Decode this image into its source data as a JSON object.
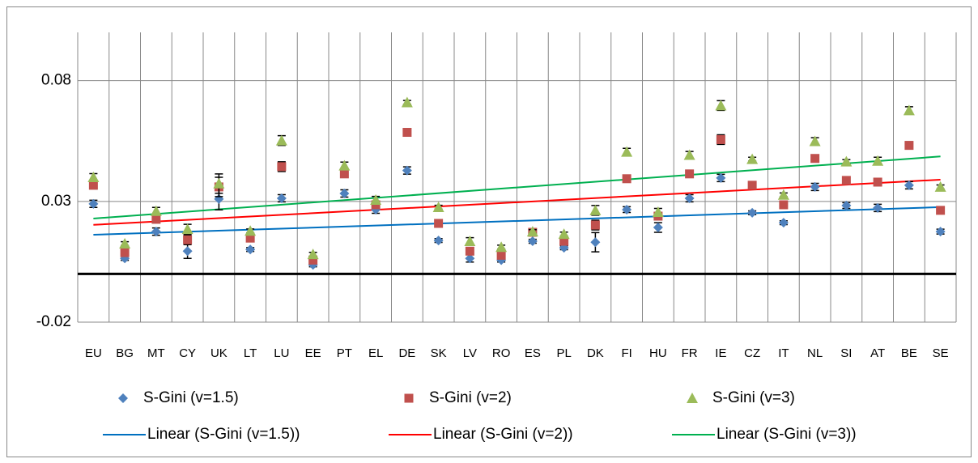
{
  "chart_data": {
    "type": "scatter",
    "categories": [
      "EU",
      "BG",
      "MT",
      "CY",
      "UK",
      "LT",
      "LU",
      "EE",
      "PT",
      "EL",
      "DE",
      "SK",
      "LV",
      "RO",
      "ES",
      "PL",
      "DK",
      "FI",
      "HU",
      "FR",
      "IE",
      "CZ",
      "IT",
      "NL",
      "SI",
      "AT",
      "BE",
      "SE"
    ],
    "ylim": [
      -0.02,
      0.1
    ],
    "yticks": [
      -0.02,
      0.03,
      0.08
    ],
    "grid": true,
    "series": [
      {
        "name": "S-Gini (v=1.5)",
        "marker": "diamond",
        "color": "#4f81bd",
        "trend_name": "Linear (S-Gini (v=1.5))",
        "trend_color": "#0070c0",
        "values": [
          0.029,
          0.0064,
          0.0175,
          0.0094,
          0.031,
          0.0101,
          0.0313,
          0.0037,
          0.0333,
          0.0266,
          0.0428,
          0.0138,
          0.0064,
          0.0057,
          0.0135,
          0.0108,
          0.0131,
          0.0266,
          0.0192,
          0.0313,
          0.0397,
          0.0253,
          0.0212,
          0.036,
          0.0283,
          0.0273,
          0.0367,
          0.0175
        ],
        "errors": [
          0.0015,
          0.0008,
          0.0015,
          0.003,
          0.0045,
          0.0008,
          0.0015,
          0.0008,
          0.0015,
          0.0015,
          0.0015,
          0.0008,
          0.0015,
          0.0008,
          0.0008,
          0.0008,
          0.004,
          0.0012,
          0.002,
          0.0015,
          0.0015,
          0.0008,
          0.0008,
          0.0015,
          0.0012,
          0.0015,
          0.0015,
          0.001
        ]
      },
      {
        "name": "S-Gini (v=2)",
        "marker": "square",
        "color": "#c0504d",
        "trend_name": "Linear (S-Gini (v=2))",
        "trend_color": "#ff0000",
        "values": [
          0.0367,
          0.0088,
          0.0226,
          0.0141,
          0.036,
          0.0148,
          0.0444,
          0.0057,
          0.0414,
          0.0286,
          0.0586,
          0.0209,
          0.0094,
          0.0077,
          0.0172,
          0.0135,
          0.0202,
          0.0394,
          0.0239,
          0.0414,
          0.0556,
          0.0367,
          0.0286,
          0.0478,
          0.0387,
          0.038,
          0.0532,
          0.0263
        ],
        "errors": [
          0.0015,
          0.0008,
          0.0015,
          0.002,
          0.004,
          0.0008,
          0.002,
          0.0008,
          0.0015,
          0.0015,
          0.0008,
          0.0008,
          0.0008,
          0.0008,
          0.0008,
          0.0008,
          0.002,
          0.0008,
          0.0015,
          0.0015,
          0.002,
          0.0008,
          0.0008,
          0.0015,
          0.0008,
          0.0015,
          0.0015,
          0.0008
        ]
      },
      {
        "name": "S-Gini (v=3)",
        "marker": "triangle",
        "color": "#9bbb59",
        "trend_name": "Linear (S-Gini (v=3))",
        "trend_color": "#00b050",
        "values": [
          0.04,
          0.0125,
          0.026,
          0.0185,
          0.0374,
          0.0178,
          0.0552,
          0.0081,
          0.0448,
          0.0306,
          0.071,
          0.0276,
          0.0135,
          0.0111,
          0.0175,
          0.0165,
          0.0263,
          0.0505,
          0.0256,
          0.0492,
          0.0697,
          0.0475,
          0.0327,
          0.0549,
          0.0465,
          0.0468,
          0.0677,
          0.036
        ],
        "errors": [
          0.0015,
          0.0008,
          0.0015,
          0.002,
          0.004,
          0.0008,
          0.002,
          0.0008,
          0.0015,
          0.0015,
          0.0008,
          0.0008,
          0.0015,
          0.0008,
          0.0008,
          0.0008,
          0.002,
          0.0015,
          0.0015,
          0.0015,
          0.002,
          0.0008,
          0.0008,
          0.0015,
          0.0008,
          0.0015,
          0.0015,
          0.0008
        ]
      }
    ]
  }
}
